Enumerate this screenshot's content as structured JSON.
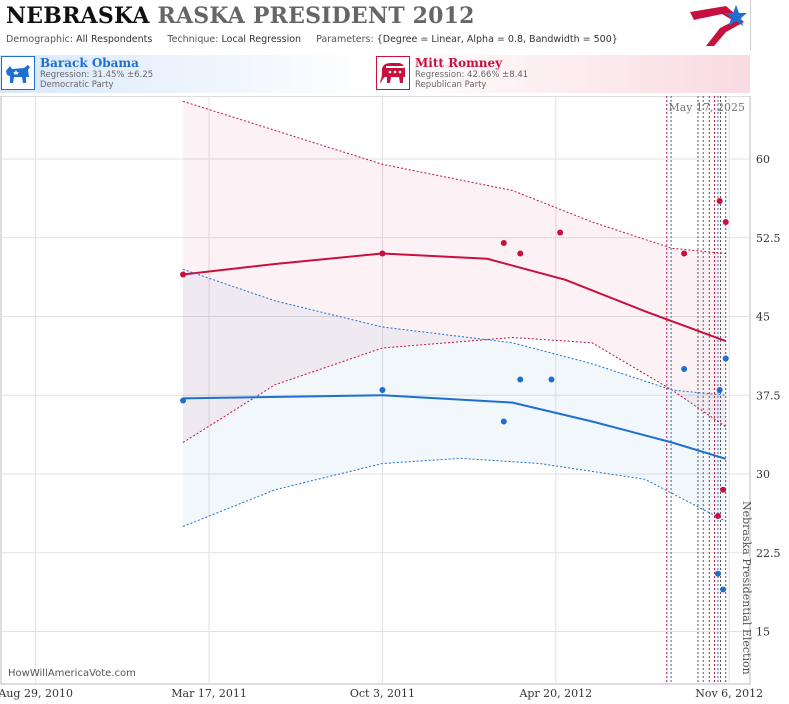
{
  "header": {
    "title_part1": "NEBRASKA",
    "title_part2": "RASKA PRESIDENT 2012",
    "demographic_label": "Demographic:",
    "demographic_value": "All Respondents",
    "technique_label": "Technique:",
    "technique_value": "Local Regression",
    "parameters_label": "Parameters:",
    "parameters_value": "{Degree = Linear, Alpha = 0.8, Bandwidth = 500}"
  },
  "legend": {
    "obama": {
      "name": "Barack Obama",
      "regression": "Regression: 31.45% ±6.25",
      "party": "Democratic Party",
      "color": "#1f6fd0",
      "icon": "donkey-icon"
    },
    "romney": {
      "name": "Mitt Romney",
      "regression": "Regression: 42.66% ±8.41",
      "party": "Republican Party",
      "color": "#c8103e",
      "icon": "elephant-icon"
    }
  },
  "credit": "HowWillAmericaVote.com",
  "chart_data": {
    "type": "scatter",
    "title": "",
    "xlabel": "",
    "ylabel": "",
    "date_annotation": "May 17, 2025",
    "election_label": "Nebraska Presidential Election",
    "x_ticks": [
      {
        "label": "Aug 29, 2010",
        "date": "2010-08-29"
      },
      {
        "label": "Mar 17, 2011",
        "date": "2011-03-17"
      },
      {
        "label": "Oct 3, 2011",
        "date": "2011-10-03"
      },
      {
        "label": "Apr 20, 2012",
        "date": "2012-04-20"
      },
      {
        "label": "Nov 6, 2012",
        "date": "2012-11-06"
      }
    ],
    "y_ticks": [
      15,
      22.5,
      30,
      37.5,
      45,
      52.5,
      60
    ],
    "xlim": [
      "2010-07-20",
      "2012-11-30"
    ],
    "ylim": [
      10,
      66
    ],
    "grid": true,
    "vertical_markers": [
      {
        "date": "2012-08-26",
        "color": "#c8103e"
      },
      {
        "date": "2012-08-31",
        "color": "#1f6fd0"
      },
      {
        "date": "2012-10-01",
        "color": "#555555"
      },
      {
        "date": "2012-10-07",
        "color": "#555555"
      },
      {
        "date": "2012-10-14",
        "color": "#555555"
      },
      {
        "date": "2012-10-20",
        "color": "#c8103e"
      },
      {
        "date": "2012-10-24",
        "color": "#1f6fd0"
      },
      {
        "date": "2012-10-27",
        "color": "#555555"
      },
      {
        "date": "2012-11-02",
        "color": "#555555"
      }
    ],
    "series": [
      {
        "name": "Mitt Romney",
        "color": "#c8103e",
        "points": [
          {
            "x": "2011-02-15",
            "y": 49
          },
          {
            "x": "2011-10-03",
            "y": 51
          },
          {
            "x": "2012-02-20",
            "y": 52
          },
          {
            "x": "2012-03-10",
            "y": 51
          },
          {
            "x": "2012-04-25",
            "y": 53
          },
          {
            "x": "2012-09-15",
            "y": 51
          },
          {
            "x": "2012-10-24",
            "y": 26
          },
          {
            "x": "2012-10-26",
            "y": 56
          },
          {
            "x": "2012-10-30",
            "y": 28.5
          },
          {
            "x": "2012-11-02",
            "y": 54
          }
        ],
        "trend": [
          {
            "x": "2011-02-15",
            "y": 49
          },
          {
            "x": "2011-06-01",
            "y": 50
          },
          {
            "x": "2011-10-03",
            "y": 51
          },
          {
            "x": "2012-02-01",
            "y": 50.5
          },
          {
            "x": "2012-05-01",
            "y": 48.5
          },
          {
            "x": "2012-08-01",
            "y": 45.5
          },
          {
            "x": "2012-11-02",
            "y": 42.66
          }
        ],
        "upper": [
          {
            "x": "2011-02-15",
            "y": 65.5
          },
          {
            "x": "2011-10-03",
            "y": 59.5
          },
          {
            "x": "2012-03-01",
            "y": 57
          },
          {
            "x": "2012-06-01",
            "y": 54
          },
          {
            "x": "2012-09-01",
            "y": 51.5
          },
          {
            "x": "2012-11-02",
            "y": 51
          }
        ],
        "lower": [
          {
            "x": "2011-02-15",
            "y": 33
          },
          {
            "x": "2011-06-01",
            "y": 38.5
          },
          {
            "x": "2011-10-03",
            "y": 42
          },
          {
            "x": "2012-03-01",
            "y": 43
          },
          {
            "x": "2012-06-01",
            "y": 42.5
          },
          {
            "x": "2012-09-01",
            "y": 38
          },
          {
            "x": "2012-11-02",
            "y": 34.5
          }
        ]
      },
      {
        "name": "Barack Obama",
        "color": "#1f6fd0",
        "points": [
          {
            "x": "2011-02-15",
            "y": 37
          },
          {
            "x": "2011-10-03",
            "y": 38
          },
          {
            "x": "2012-02-20",
            "y": 35
          },
          {
            "x": "2012-03-10",
            "y": 39
          },
          {
            "x": "2012-04-15",
            "y": 39
          },
          {
            "x": "2012-09-15",
            "y": 40
          },
          {
            "x": "2012-10-24",
            "y": 20.5
          },
          {
            "x": "2012-10-26",
            "y": 38
          },
          {
            "x": "2012-10-30",
            "y": 19
          },
          {
            "x": "2012-11-02",
            "y": 41
          }
        ],
        "trend": [
          {
            "x": "2011-02-15",
            "y": 37.2
          },
          {
            "x": "2011-10-03",
            "y": 37.5
          },
          {
            "x": "2012-03-01",
            "y": 36.8
          },
          {
            "x": "2012-06-01",
            "y": 35
          },
          {
            "x": "2012-09-01",
            "y": 33
          },
          {
            "x": "2012-11-02",
            "y": 31.45
          }
        ],
        "upper": [
          {
            "x": "2011-02-15",
            "y": 49.5
          },
          {
            "x": "2011-06-01",
            "y": 46.5
          },
          {
            "x": "2011-10-03",
            "y": 44
          },
          {
            "x": "2012-03-01",
            "y": 42.5
          },
          {
            "x": "2012-06-01",
            "y": 40.5
          },
          {
            "x": "2012-09-01",
            "y": 38
          },
          {
            "x": "2012-11-02",
            "y": 37.5
          }
        ],
        "lower": [
          {
            "x": "2011-02-15",
            "y": 25
          },
          {
            "x": "2011-06-01",
            "y": 28.5
          },
          {
            "x": "2011-10-03",
            "y": 31
          },
          {
            "x": "2012-01-01",
            "y": 31.5
          },
          {
            "x": "2012-04-01",
            "y": 31
          },
          {
            "x": "2012-08-01",
            "y": 29.5
          },
          {
            "x": "2012-11-02",
            "y": 25.5
          }
        ]
      }
    ]
  }
}
